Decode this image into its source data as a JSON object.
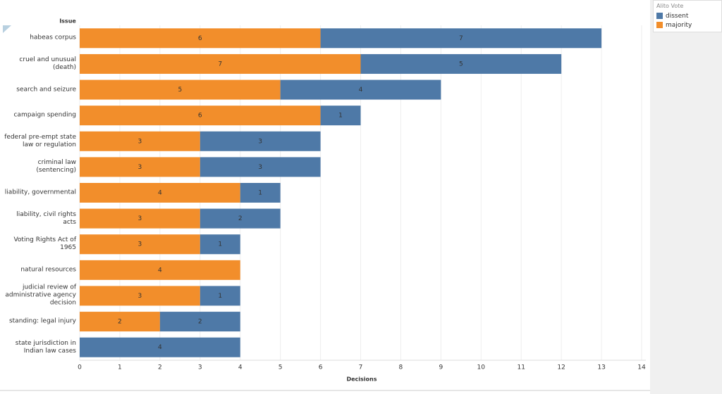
{
  "chart_data": {
    "type": "stacked-barh",
    "y_label": "Issue",
    "x_label": "Decisions",
    "legend_title": "Alito Vote",
    "categories": [
      "habeas corpus",
      "cruel and unusual (death)",
      "search and seizure",
      "campaign spending",
      "federal pre-empt state law or regulation",
      "criminal law (sentencing)",
      "liability, governmental",
      "liability, civil rights acts",
      "Voting Rights Act of 1965",
      "natural resources",
      "judicial review of administrative agency decision",
      "standing: legal injury",
      "state jurisdiction in Indian law cases"
    ],
    "series": [
      {
        "name": "dissent",
        "color": "#4e79a7",
        "values": [
          7,
          5,
          4,
          1,
          3,
          3,
          1,
          2,
          1,
          null,
          1,
          2,
          4
        ]
      },
      {
        "name": "majority",
        "color": "#f28e2b",
        "values": [
          6,
          7,
          5,
          6,
          3,
          3,
          4,
          3,
          3,
          4,
          3,
          2,
          null
        ]
      }
    ],
    "xlim": [
      0,
      14
    ],
    "xticks": [
      0,
      1,
      2,
      3,
      4,
      5,
      6,
      7,
      8,
      9,
      10,
      11,
      12,
      13,
      14
    ],
    "grid": true
  }
}
